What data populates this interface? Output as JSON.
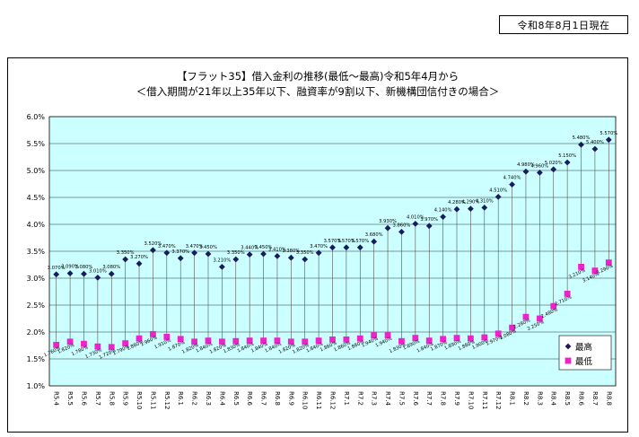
{
  "header": {
    "date_label": "令和8年8月1日現在"
  },
  "chart_data": {
    "type": "line",
    "title": "【フラット35】借入金利の推移(最低～最高)令和5年4月から",
    "subtitle": "＜借入期間が21年以上35年以下、融資率が9割以下、新機構団信付きの場合＞",
    "xlabel": "",
    "ylabel": "",
    "ylim": [
      1.0,
      6.0
    ],
    "y_ticks": [
      "1.0%",
      "1.5%",
      "2.0%",
      "2.5%",
      "3.0%",
      "3.5%",
      "4.0%",
      "4.5%",
      "5.0%",
      "5.5%",
      "6.0%"
    ],
    "grid": true,
    "legend_position": "right",
    "categories": [
      "R5.4",
      "R5.5",
      "R5.6",
      "R5.7",
      "R5.8",
      "R5.9",
      "R5.10",
      "R5.11",
      "R5.12",
      "R6.1",
      "R6.2",
      "R6.3",
      "R6.4",
      "R6.5",
      "R6.6",
      "R6.7",
      "R6.8",
      "R6.9",
      "R6.10",
      "R6.11",
      "R6.12",
      "R7.1",
      "R7.2",
      "R7.3",
      "R7.4",
      "R7.5",
      "R7.6",
      "R7.7",
      "R7.8",
      "R7.9",
      "R7.10",
      "R7.11",
      "R7.12",
      "R8.1",
      "R8.2",
      "R8.3",
      "R8.4",
      "R8.5",
      "R8.6",
      "R8.7",
      "R8.8"
    ],
    "series": [
      {
        "name": "最高",
        "color": "#1a1a5e",
        "marker": "diamond",
        "values": [
          3.07,
          3.09,
          3.08,
          3.01,
          3.08,
          3.35,
          3.27,
          3.52,
          3.47,
          3.37,
          3.47,
          3.45,
          3.21,
          3.35,
          3.44,
          3.45,
          3.41,
          3.38,
          3.35,
          3.47,
          3.57,
          3.57,
          3.57,
          3.68,
          3.93,
          3.86,
          4.01,
          3.97,
          4.14,
          4.28,
          4.29,
          4.31,
          4.51,
          4.74,
          4.98,
          4.96,
          5.02,
          5.15,
          5.48,
          5.4,
          5.57
        ],
        "labels": [
          "3.070%",
          "3.090%",
          "3.080%",
          "3.010%",
          "3.080%",
          "3.350%",
          "3.270%",
          "3.520%",
          "3.470%",
          "3.370%",
          "3.470%",
          "3.450%",
          "3.210%",
          "3.350%",
          "3.440%",
          "3.450%",
          "3.410%",
          "3.380%",
          "3.350%",
          "3.470%",
          "3.570%",
          "3.570%",
          "3.570%",
          "3.680%",
          "3.930%",
          "3.860%",
          "4.010%",
          "3.970%",
          "4.140%",
          "4.280%",
          "4.290%",
          "4.310%",
          "4.510%",
          "4.740%",
          "4.980%",
          "4.960%",
          "5.020%",
          "5.150%",
          "5.480%",
          "5.400%",
          "5.570%"
        ]
      },
      {
        "name": "最低",
        "color": "#ee22cc",
        "marker": "square",
        "values": [
          1.76,
          1.82,
          1.78,
          1.73,
          1.72,
          1.79,
          1.88,
          1.96,
          1.91,
          1.87,
          1.82,
          1.84,
          1.82,
          1.83,
          1.84,
          1.84,
          1.84,
          1.82,
          1.82,
          1.84,
          1.86,
          1.86,
          1.88,
          1.94,
          1.94,
          1.83,
          1.89,
          1.84,
          1.87,
          1.89,
          1.88,
          1.9,
          1.97,
          2.08,
          2.28,
          2.25,
          2.48,
          2.71,
          3.21,
          3.14,
          3.29
        ],
        "labels": [
          "1.760%",
          "1.820%",
          "1.780%",
          "1.730%",
          "1.720%",
          "1.790%",
          "1.880%",
          "1.960%",
          "1.910%",
          "1.870%",
          "1.820%",
          "1.840%",
          "1.820%",
          "1.830%",
          "1.840%",
          "1.840%",
          "1.840%",
          "1.820%",
          "1.820%",
          "1.840%",
          "1.860%",
          "1.860%",
          "1.880%",
          "1.940%",
          "1.940%",
          "1.830%",
          "1.890%",
          "1.840%",
          "1.870%",
          "1.890%",
          "1.880%",
          "1.900%",
          "1.970%",
          "2.080%",
          "2.280%",
          "2.250%",
          "2.480%",
          "2.710%",
          "3.210%",
          "3.140%",
          "3.290%"
        ]
      }
    ]
  }
}
